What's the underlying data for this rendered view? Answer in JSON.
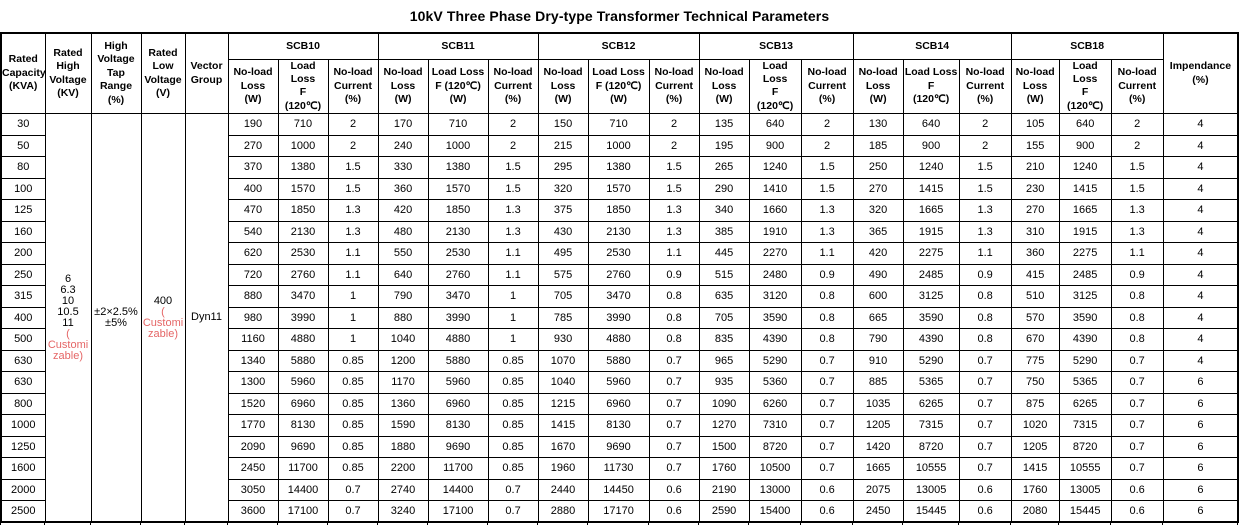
{
  "title": "10kV Three Phase Dry-type Transformer Technical Parameters",
  "colors": {
    "text": "#000000",
    "border": "#000000",
    "customizable_red": "#e56666",
    "faint_gridline": "#d9d9d9",
    "background": "#ffffff"
  },
  "table": {
    "left_columns": [
      {
        "id": "rated-capacity",
        "lines": [
          "Rated",
          "Capacity",
          "(KVA)"
        ]
      },
      {
        "id": "rated-high-voltage",
        "lines": [
          "Rated",
          "High",
          "Voltage",
          "(KV)"
        ]
      },
      {
        "id": "high-voltage-tap-range",
        "lines": [
          "High",
          "Voltage",
          "Tap",
          "Range",
          "(%)"
        ]
      },
      {
        "id": "rated-low-voltage",
        "lines": [
          "Rated",
          "Low",
          "Voltage",
          "(V)"
        ]
      },
      {
        "id": "vector-group",
        "lines": [
          "Vector",
          "Group"
        ]
      }
    ],
    "groups": [
      {
        "name": "SCB10",
        "subcolumns": [
          [
            "No-load",
            "Loss",
            "(W)"
          ],
          [
            "Load Loss",
            "F",
            "(120℃)"
          ],
          [
            "No-load",
            "Current",
            "(%)"
          ]
        ]
      },
      {
        "name": "SCB11",
        "subcolumns": [
          [
            "No-load",
            "Loss",
            "(W)"
          ],
          [
            "Load Loss",
            "F (120℃)",
            "(W)"
          ],
          [
            "No-load",
            "Current",
            "(%)"
          ]
        ]
      },
      {
        "name": "SCB12",
        "subcolumns": [
          [
            "No-load",
            "Loss",
            "(W)"
          ],
          [
            "Load Loss",
            "F (120℃)",
            "(W)"
          ],
          [
            "No-load",
            "Current",
            "(%)"
          ]
        ]
      },
      {
        "name": "SCB13",
        "subcolumns": [
          [
            "No-load",
            "Loss",
            "(W)"
          ],
          [
            "Load Loss",
            "F",
            "(120℃)"
          ],
          [
            "No-load",
            "Current",
            "(%)"
          ]
        ]
      },
      {
        "name": "SCB14",
        "subcolumns": [
          [
            "No-load",
            "Loss",
            "(W)"
          ],
          [
            "Load Loss",
            "F",
            "(120℃)"
          ],
          [
            "No-load",
            "Current",
            "(%)"
          ]
        ]
      },
      {
        "name": "SCB18",
        "subcolumns": [
          [
            "No-load",
            "Loss",
            "(W)"
          ],
          [
            "Load Loss",
            "F",
            "(120℃)"
          ],
          [
            "No-load",
            "Current",
            "(%)"
          ]
        ]
      }
    ],
    "impedance_header": {
      "lines": [
        "Impendance",
        "(%)"
      ]
    },
    "merged_cells": {
      "rated_high_voltage": {
        "lines": [
          {
            "t": "6"
          },
          {
            "t": "6.3"
          },
          {
            "t": "10"
          },
          {
            "t": "10.5"
          },
          {
            "t": "11"
          },
          {
            "t": "(",
            "red": true
          },
          {
            "t": "Customi",
            "red": true
          },
          {
            "t": "zable)",
            "red": true
          }
        ]
      },
      "tap_range": {
        "lines": [
          {
            "t": "±2×2.5%"
          },
          {
            "t": "±5%"
          }
        ]
      },
      "rated_low_voltage": {
        "lines": [
          {
            "t": "400"
          },
          {
            "t": "(",
            "red": true
          },
          {
            "t": "Customi",
            "red": true
          },
          {
            "t": "zable)",
            "red": true
          }
        ]
      },
      "vector_group": {
        "lines": [
          {
            "t": "Dyn11"
          }
        ]
      }
    },
    "rows": [
      {
        "capacity": "30",
        "values": [
          "190",
          "710",
          "2",
          "170",
          "710",
          "2",
          "150",
          "710",
          "2",
          "135",
          "640",
          "2",
          "130",
          "640",
          "2",
          "105",
          "640",
          "2"
        ],
        "impedance": "4"
      },
      {
        "capacity": "50",
        "values": [
          "270",
          "1000",
          "2",
          "240",
          "1000",
          "2",
          "215",
          "1000",
          "2",
          "195",
          "900",
          "2",
          "185",
          "900",
          "2",
          "155",
          "900",
          "2"
        ],
        "impedance": "4"
      },
      {
        "capacity": "80",
        "values": [
          "370",
          "1380",
          "1.5",
          "330",
          "1380",
          "1.5",
          "295",
          "1380",
          "1.5",
          "265",
          "1240",
          "1.5",
          "250",
          "1240",
          "1.5",
          "210",
          "1240",
          "1.5"
        ],
        "impedance": "4"
      },
      {
        "capacity": "100",
        "values": [
          "400",
          "1570",
          "1.5",
          "360",
          "1570",
          "1.5",
          "320",
          "1570",
          "1.5",
          "290",
          "1410",
          "1.5",
          "270",
          "1415",
          "1.5",
          "230",
          "1415",
          "1.5"
        ],
        "impedance": "4"
      },
      {
        "capacity": "125",
        "values": [
          "470",
          "1850",
          "1.3",
          "420",
          "1850",
          "1.3",
          "375",
          "1850",
          "1.3",
          "340",
          "1660",
          "1.3",
          "320",
          "1665",
          "1.3",
          "270",
          "1665",
          "1.3"
        ],
        "impedance": "4"
      },
      {
        "capacity": "160",
        "values": [
          "540",
          "2130",
          "1.3",
          "480",
          "2130",
          "1.3",
          "430",
          "2130",
          "1.3",
          "385",
          "1910",
          "1.3",
          "365",
          "1915",
          "1.3",
          "310",
          "1915",
          "1.3"
        ],
        "impedance": "4"
      },
      {
        "capacity": "200",
        "values": [
          "620",
          "2530",
          "1.1",
          "550",
          "2530",
          "1.1",
          "495",
          "2530",
          "1.1",
          "445",
          "2270",
          "1.1",
          "420",
          "2275",
          "1.1",
          "360",
          "2275",
          "1.1"
        ],
        "impedance": "4"
      },
      {
        "capacity": "250",
        "values": [
          "720",
          "2760",
          "1.1",
          "640",
          "2760",
          "1.1",
          "575",
          "2760",
          "0.9",
          "515",
          "2480",
          "0.9",
          "490",
          "2485",
          "0.9",
          "415",
          "2485",
          "0.9"
        ],
        "impedance": "4"
      },
      {
        "capacity": "315",
        "values": [
          "880",
          "3470",
          "1",
          "790",
          "3470",
          "1",
          "705",
          "3470",
          "0.8",
          "635",
          "3120",
          "0.8",
          "600",
          "3125",
          "0.8",
          "510",
          "3125",
          "0.8"
        ],
        "impedance": "4"
      },
      {
        "capacity": "400",
        "values": [
          "980",
          "3990",
          "1",
          "880",
          "3990",
          "1",
          "785",
          "3990",
          "0.8",
          "705",
          "3590",
          "0.8",
          "665",
          "3590",
          "0.8",
          "570",
          "3590",
          "0.8"
        ],
        "impedance": "4"
      },
      {
        "capacity": "500",
        "values": [
          "1160",
          "4880",
          "1",
          "1040",
          "4880",
          "1",
          "930",
          "4880",
          "0.8",
          "835",
          "4390",
          "0.8",
          "790",
          "4390",
          "0.8",
          "670",
          "4390",
          "0.8"
        ],
        "impedance": "4"
      },
      {
        "capacity": "630",
        "values": [
          "1340",
          "5880",
          "0.85",
          "1200",
          "5880",
          "0.85",
          "1070",
          "5880",
          "0.7",
          "965",
          "5290",
          "0.7",
          "910",
          "5290",
          "0.7",
          "775",
          "5290",
          "0.7"
        ],
        "impedance": "4"
      },
      {
        "capacity": "630",
        "values": [
          "1300",
          "5960",
          "0.85",
          "1170",
          "5960",
          "0.85",
          "1040",
          "5960",
          "0.7",
          "935",
          "5360",
          "0.7",
          "885",
          "5365",
          "0.7",
          "750",
          "5365",
          "0.7"
        ],
        "impedance": "6"
      },
      {
        "capacity": "800",
        "values": [
          "1520",
          "6960",
          "0.85",
          "1360",
          "6960",
          "0.85",
          "1215",
          "6960",
          "0.7",
          "1090",
          "6260",
          "0.7",
          "1035",
          "6265",
          "0.7",
          "875",
          "6265",
          "0.7"
        ],
        "impedance": "6"
      },
      {
        "capacity": "1000",
        "values": [
          "1770",
          "8130",
          "0.85",
          "1590",
          "8130",
          "0.85",
          "1415",
          "8130",
          "0.7",
          "1270",
          "7310",
          "0.7",
          "1205",
          "7315",
          "0.7",
          "1020",
          "7315",
          "0.7"
        ],
        "impedance": "6"
      },
      {
        "capacity": "1250",
        "values": [
          "2090",
          "9690",
          "0.85",
          "1880",
          "9690",
          "0.85",
          "1670",
          "9690",
          "0.7",
          "1500",
          "8720",
          "0.7",
          "1420",
          "8720",
          "0.7",
          "1205",
          "8720",
          "0.7"
        ],
        "impedance": "6"
      },
      {
        "capacity": "1600",
        "values": [
          "2450",
          "11700",
          "0.85",
          "2200",
          "11700",
          "0.85",
          "1960",
          "11730",
          "0.7",
          "1760",
          "10500",
          "0.7",
          "1665",
          "10555",
          "0.7",
          "1415",
          "10555",
          "0.7"
        ],
        "impedance": "6"
      },
      {
        "capacity": "2000",
        "values": [
          "3050",
          "14400",
          "0.7",
          "2740",
          "14400",
          "0.7",
          "2440",
          "14450",
          "0.6",
          "2190",
          "13000",
          "0.6",
          "2075",
          "13005",
          "0.6",
          "1760",
          "13005",
          "0.6"
        ],
        "impedance": "6"
      },
      {
        "capacity": "2500",
        "values": [
          "3600",
          "17100",
          "0.7",
          "3240",
          "17100",
          "0.7",
          "2880",
          "17170",
          "0.6",
          "2590",
          "15400",
          "0.6",
          "2450",
          "15445",
          "0.6",
          "2080",
          "15445",
          "0.6"
        ],
        "impedance": "6"
      }
    ]
  }
}
